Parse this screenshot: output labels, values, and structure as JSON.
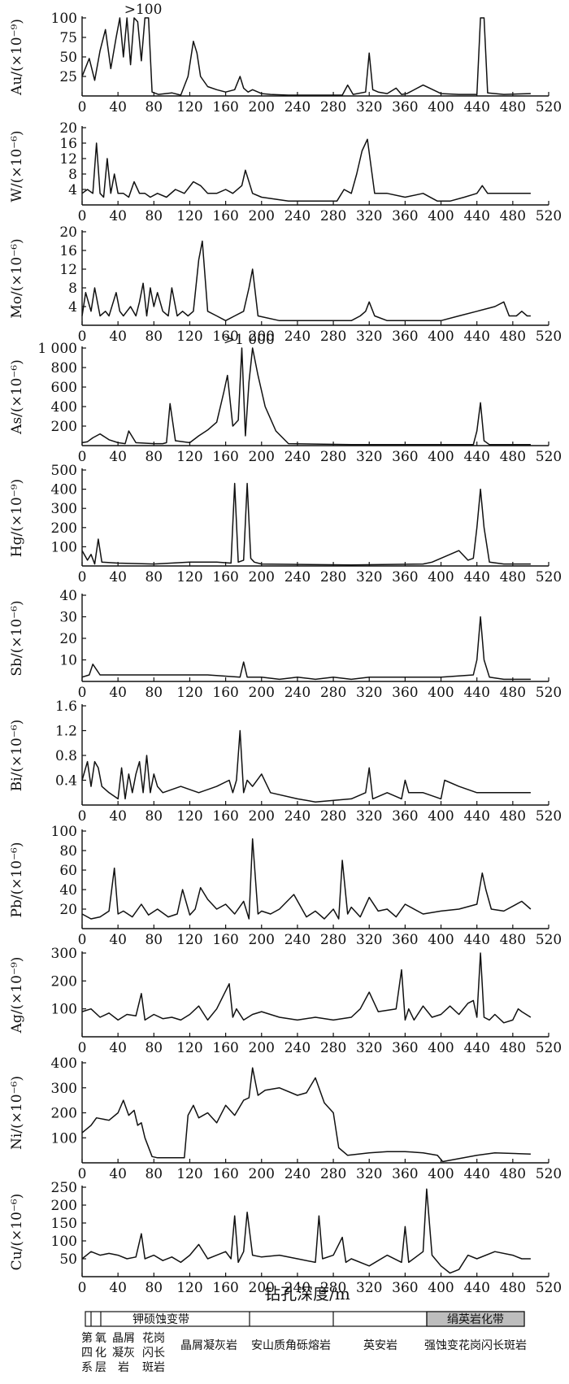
{
  "chart_data": [
    {
      "type": "line",
      "ylabel": "Au/(×10⁻⁹)",
      "yticks": [
        "100",
        "75",
        "50",
        "25"
      ],
      "ylim": [
        0,
        100
      ],
      "xlim": [
        0,
        520
      ],
      "xticks": [
        "0",
        "40",
        "80",
        "120",
        "160",
        "200",
        "240",
        "280",
        "320",
        "360",
        "400",
        "440",
        "480",
        "520"
      ],
      "annotations": [
        {
          "text": ">100",
          "x": 68,
          "y": 100
        }
      ],
      "x": [
        0,
        8,
        14,
        20,
        26,
        32,
        38,
        42,
        46,
        50,
        54,
        58,
        62,
        66,
        70,
        74,
        78,
        85,
        100,
        110,
        118,
        124,
        128,
        132,
        140,
        150,
        160,
        170,
        176,
        180,
        185,
        190,
        200,
        210,
        230,
        260,
        290,
        296,
        302,
        316,
        320,
        324,
        330,
        340,
        350,
        356,
        362,
        380,
        400,
        420,
        440,
        444,
        448,
        452,
        470,
        500
      ],
      "values": [
        25,
        48,
        20,
        58,
        85,
        35,
        75,
        100,
        50,
        100,
        40,
        100,
        95,
        45,
        100,
        100,
        5,
        2,
        4,
        1,
        25,
        70,
        55,
        25,
        12,
        8,
        5,
        8,
        25,
        10,
        5,
        8,
        3,
        2,
        1,
        1,
        1,
        14,
        2,
        5,
        55,
        8,
        5,
        3,
        10,
        2,
        3,
        14,
        3,
        2,
        2,
        100,
        100,
        4,
        2,
        3
      ]
    },
    {
      "type": "line",
      "ylabel": "W/(×10⁻⁶)",
      "yticks": [
        "20",
        "16",
        "12",
        "8",
        "4"
      ],
      "ylim": [
        0,
        20
      ],
      "xlim": [
        0,
        520
      ],
      "xticks": [
        "0",
        "40",
        "80",
        "120",
        "160",
        "200",
        "240",
        "280",
        "320",
        "360",
        "400",
        "440",
        "480",
        "520"
      ],
      "x": [
        0,
        6,
        12,
        16,
        20,
        24,
        28,
        32,
        36,
        40,
        46,
        52,
        58,
        64,
        70,
        76,
        84,
        94,
        104,
        114,
        124,
        132,
        140,
        150,
        160,
        168,
        178,
        182,
        190,
        200,
        230,
        260,
        284,
        292,
        300,
        306,
        312,
        318,
        326,
        340,
        360,
        380,
        396,
        410,
        426,
        440,
        446,
        452,
        470,
        500
      ],
      "values": [
        3,
        4,
        3,
        16,
        3,
        2,
        12,
        3,
        8,
        3,
        3,
        2,
        6,
        3,
        3,
        2,
        3,
        2,
        4,
        3,
        6,
        5,
        3,
        3,
        4,
        3,
        5,
        9,
        3,
        2,
        1,
        1,
        1,
        4,
        3,
        8,
        14,
        17,
        3,
        3,
        2,
        3,
        1,
        1,
        2,
        3,
        5,
        3,
        3,
        3
      ]
    },
    {
      "type": "line",
      "ylabel": "Mo/(×10⁻⁶)",
      "yticks": [
        "20",
        "16",
        "12",
        "8",
        "4"
      ],
      "ylim": [
        0,
        20
      ],
      "xlim": [
        0,
        520
      ],
      "xticks": [
        "0",
        "40",
        "80",
        "120",
        "160",
        "200",
        "240",
        "280",
        "320",
        "360",
        "400",
        "440",
        "480",
        "520"
      ],
      "x": [
        0,
        4,
        10,
        14,
        20,
        26,
        30,
        38,
        42,
        46,
        54,
        60,
        64,
        68,
        72,
        76,
        80,
        84,
        90,
        96,
        100,
        106,
        112,
        118,
        124,
        130,
        134,
        140,
        150,
        160,
        170,
        180,
        186,
        190,
        196,
        220,
        260,
        300,
        310,
        316,
        320,
        326,
        340,
        360,
        380,
        400,
        420,
        440,
        460,
        470,
        476,
        484,
        490,
        496,
        500
      ],
      "values": [
        2,
        7,
        3,
        8,
        2,
        3,
        2,
        7,
        3,
        2,
        4,
        2,
        5,
        9,
        2,
        8,
        4,
        7,
        3,
        2,
        8,
        2,
        3,
        2,
        3,
        14,
        18,
        3,
        2,
        1,
        2,
        3,
        8,
        12,
        2,
        1,
        1,
        1,
        2,
        3,
        5,
        2,
        1,
        1,
        1,
        1,
        2,
        3,
        4,
        5,
        2,
        2,
        3,
        2,
        2
      ]
    },
    {
      "type": "line",
      "ylabel": "As/(×10⁻⁶)",
      "yticks": [
        "1 000",
        "800",
        "600",
        "400",
        "200"
      ],
      "ylim": [
        0,
        1000
      ],
      "xlim": [
        0,
        520
      ],
      "xticks": [
        "0",
        "40",
        "80",
        "120",
        "160",
        "200",
        "240",
        "280",
        "320",
        "360",
        "400",
        "440",
        "480",
        "520"
      ],
      "annotations": [
        {
          "text": ">1 000",
          "x": 186,
          "y": 1000
        }
      ],
      "x": [
        0,
        6,
        12,
        20,
        30,
        40,
        48,
        52,
        60,
        80,
        90,
        94,
        98,
        104,
        120,
        130,
        140,
        150,
        158,
        162,
        168,
        174,
        178,
        182,
        186,
        190,
        196,
        204,
        216,
        230,
        300,
        400,
        436,
        440,
        444,
        448,
        454,
        470,
        500
      ],
      "values": [
        30,
        40,
        80,
        120,
        60,
        30,
        20,
        150,
        30,
        20,
        20,
        30,
        430,
        50,
        30,
        100,
        160,
        240,
        550,
        720,
        200,
        260,
        1000,
        100,
        650,
        1000,
        720,
        400,
        150,
        20,
        10,
        10,
        10,
        150,
        440,
        50,
        10,
        10,
        10
      ]
    },
    {
      "type": "line",
      "ylabel": "Hg/(×10⁻⁹)",
      "yticks": [
        "500",
        "400",
        "300",
        "200",
        "100"
      ],
      "ylim": [
        0,
        500
      ],
      "xlim": [
        0,
        520
      ],
      "xticks": [
        "0",
        "40",
        "80",
        "120",
        "160",
        "200",
        "240",
        "280",
        "320",
        "360",
        "400",
        "440",
        "480",
        "520"
      ],
      "x": [
        0,
        6,
        10,
        14,
        18,
        22,
        40,
        80,
        120,
        150,
        166,
        170,
        174,
        180,
        184,
        188,
        192,
        200,
        300,
        380,
        390,
        400,
        420,
        430,
        436,
        440,
        444,
        448,
        454,
        470,
        500
      ],
      "values": [
        80,
        30,
        60,
        10,
        140,
        20,
        15,
        10,
        20,
        20,
        15,
        430,
        20,
        30,
        430,
        40,
        20,
        10,
        5,
        10,
        20,
        40,
        80,
        30,
        40,
        200,
        400,
        200,
        20,
        10,
        10
      ]
    },
    {
      "type": "line",
      "ylabel": "Sb/(×10⁻⁶)",
      "yticks": [
        "40",
        "30",
        "20",
        "10"
      ],
      "ylim": [
        0,
        40
      ],
      "xlim": [
        0,
        520
      ],
      "xticks": [
        "0",
        "40",
        "80",
        "120",
        "160",
        "200",
        "240",
        "280",
        "320",
        "360",
        "400",
        "440",
        "480",
        "520"
      ],
      "x": [
        0,
        8,
        12,
        20,
        60,
        100,
        140,
        176,
        180,
        184,
        200,
        220,
        240,
        260,
        280,
        300,
        320,
        340,
        360,
        400,
        436,
        440,
        444,
        448,
        454,
        470,
        500
      ],
      "values": [
        2,
        3,
        8,
        3,
        3,
        3,
        3,
        2,
        9,
        2,
        2,
        1,
        2,
        1,
        2,
        1,
        2,
        2,
        2,
        2,
        3,
        10,
        30,
        10,
        2,
        1,
        1
      ]
    },
    {
      "type": "line",
      "ylabel": "Bi/(×10⁻⁶)",
      "yticks": [
        "1.6",
        "1.2",
        "0.8",
        "0.4"
      ],
      "ylim": [
        0,
        1.6
      ],
      "xlim": [
        0,
        520
      ],
      "xticks": [
        "0",
        "40",
        "80",
        "120",
        "160",
        "200",
        "240",
        "280",
        "320",
        "360",
        "400",
        "440",
        "480",
        "520"
      ],
      "x": [
        0,
        6,
        10,
        14,
        18,
        22,
        30,
        40,
        44,
        48,
        52,
        56,
        60,
        64,
        68,
        72,
        76,
        80,
        84,
        90,
        110,
        130,
        150,
        164,
        168,
        172,
        176,
        180,
        184,
        190,
        200,
        210,
        240,
        260,
        300,
        316,
        320,
        324,
        340,
        356,
        360,
        364,
        380,
        400,
        404,
        420,
        440,
        480,
        500
      ],
      "values": [
        0.4,
        0.7,
        0.3,
        0.7,
        0.6,
        0.3,
        0.2,
        0.1,
        0.6,
        0.1,
        0.5,
        0.2,
        0.5,
        0.7,
        0.2,
        0.8,
        0.2,
        0.5,
        0.3,
        0.2,
        0.3,
        0.2,
        0.3,
        0.4,
        0.2,
        0.4,
        1.2,
        0.2,
        0.4,
        0.3,
        0.5,
        0.2,
        0.1,
        0.05,
        0.1,
        0.2,
        0.6,
        0.1,
        0.2,
        0.1,
        0.4,
        0.2,
        0.2,
        0.1,
        0.4,
        0.3,
        0.2,
        0.2,
        0.2
      ]
    },
    {
      "type": "line",
      "ylabel": "Pb/(×10⁻⁶)",
      "yticks": [
        "100",
        "80",
        "60",
        "40",
        "20"
      ],
      "ylim": [
        0,
        100
      ],
      "xlim": [
        0,
        520
      ],
      "xticks": [
        "0",
        "40",
        "80",
        "120",
        "160",
        "200",
        "240",
        "280",
        "320",
        "360",
        "400",
        "440",
        "480",
        "520"
      ],
      "x": [
        0,
        10,
        20,
        30,
        36,
        40,
        46,
        56,
        66,
        74,
        84,
        96,
        106,
        112,
        120,
        126,
        132,
        140,
        150,
        160,
        170,
        180,
        186,
        190,
        196,
        200,
        210,
        220,
        236,
        250,
        260,
        270,
        280,
        286,
        290,
        296,
        300,
        310,
        320,
        330,
        340,
        350,
        360,
        380,
        400,
        420,
        440,
        446,
        450,
        456,
        470,
        490,
        500
      ],
      "values": [
        15,
        10,
        12,
        18,
        62,
        15,
        18,
        12,
        25,
        14,
        20,
        12,
        15,
        40,
        14,
        20,
        42,
        30,
        20,
        25,
        15,
        28,
        10,
        92,
        15,
        18,
        15,
        20,
        35,
        12,
        18,
        10,
        20,
        10,
        70,
        15,
        22,
        12,
        32,
        18,
        20,
        12,
        25,
        15,
        18,
        20,
        25,
        57,
        40,
        20,
        18,
        28,
        20
      ]
    },
    {
      "type": "line",
      "ylabel": "Ag/(×10⁻⁹)",
      "yticks": [
        "300",
        "200",
        "100"
      ],
      "ylim": [
        0,
        300
      ],
      "xlim": [
        0,
        520
      ],
      "xticks": [
        "0",
        "40",
        "80",
        "120",
        "160",
        "200",
        "240",
        "280",
        "320",
        "360",
        "400",
        "440",
        "480",
        "520"
      ],
      "x": [
        0,
        10,
        20,
        30,
        40,
        50,
        60,
        66,
        70,
        80,
        90,
        100,
        110,
        120,
        130,
        140,
        150,
        164,
        168,
        172,
        180,
        190,
        200,
        220,
        240,
        260,
        280,
        300,
        310,
        320,
        330,
        350,
        356,
        360,
        364,
        370,
        380,
        390,
        400,
        410,
        420,
        430,
        436,
        440,
        444,
        448,
        454,
        460,
        470,
        480,
        486,
        490,
        500
      ],
      "values": [
        90,
        100,
        70,
        85,
        60,
        80,
        75,
        155,
        60,
        80,
        65,
        70,
        60,
        80,
        110,
        60,
        100,
        190,
        70,
        100,
        60,
        80,
        90,
        70,
        60,
        70,
        60,
        70,
        100,
        160,
        90,
        100,
        240,
        60,
        100,
        60,
        110,
        70,
        80,
        110,
        80,
        120,
        130,
        70,
        300,
        70,
        60,
        80,
        50,
        60,
        100,
        90,
        70
      ]
    },
    {
      "type": "line",
      "ylabel": "Ni/(×10⁻⁶)",
      "yticks": [
        "400",
        "300",
        "200",
        "100"
      ],
      "ylim": [
        0,
        400
      ],
      "xlim": [
        0,
        520
      ],
      "xticks": [
        "0",
        "40",
        "80",
        "120",
        "160",
        "200",
        "240",
        "280",
        "320",
        "360",
        "400",
        "440",
        "480",
        "520"
      ],
      "x": [
        0,
        10,
        16,
        30,
        40,
        46,
        52,
        58,
        62,
        66,
        70,
        78,
        84,
        114,
        118,
        124,
        130,
        140,
        150,
        160,
        170,
        180,
        186,
        190,
        196,
        204,
        220,
        240,
        250,
        260,
        270,
        280,
        286,
        296,
        320,
        340,
        360,
        380,
        396,
        402,
        440,
        460,
        500
      ],
      "values": [
        120,
        150,
        180,
        170,
        200,
        250,
        190,
        210,
        150,
        160,
        100,
        25,
        20,
        20,
        190,
        230,
        180,
        200,
        160,
        230,
        190,
        250,
        260,
        380,
        270,
        290,
        300,
        270,
        280,
        340,
        240,
        200,
        60,
        30,
        40,
        45,
        45,
        40,
        30,
        5,
        30,
        40,
        35
      ]
    },
    {
      "type": "line",
      "ylabel": "Cu/(×10⁻⁶)",
      "yticks": [
        "250",
        "200",
        "150",
        "100",
        "50"
      ],
      "ylim": [
        0,
        250
      ],
      "xlim": [
        0,
        520
      ],
      "xticks": [
        "0",
        "40",
        "80",
        "120",
        "160",
        "200",
        "240",
        "280",
        "320",
        "360",
        "400",
        "440",
        "480",
        "520"
      ],
      "x": [
        0,
        10,
        20,
        30,
        40,
        50,
        60,
        66,
        70,
        80,
        90,
        100,
        110,
        120,
        130,
        140,
        150,
        160,
        166,
        170,
        174,
        180,
        184,
        190,
        200,
        220,
        240,
        260,
        264,
        268,
        280,
        290,
        294,
        300,
        320,
        340,
        356,
        360,
        364,
        380,
        384,
        390,
        400,
        410,
        420,
        430,
        440,
        460,
        480,
        490,
        500
      ],
      "values": [
        50,
        70,
        60,
        65,
        60,
        50,
        55,
        120,
        50,
        60,
        45,
        55,
        40,
        60,
        90,
        50,
        60,
        70,
        50,
        170,
        40,
        70,
        180,
        60,
        55,
        60,
        50,
        40,
        170,
        50,
        60,
        110,
        40,
        50,
        30,
        60,
        40,
        140,
        40,
        70,
        245,
        60,
        30,
        10,
        20,
        60,
        50,
        70,
        60,
        50,
        50
      ]
    }
  ],
  "x_axis_title": "钻孔深度/m",
  "legend": {
    "zones": [
      {
        "name": "钾硕蚀变带"
      },
      {
        "name": "绢英岩化带"
      }
    ],
    "lithology": [
      {
        "name": "第四系"
      },
      {
        "name": "氧化层"
      },
      {
        "name": "晶屑凝灰岩"
      },
      {
        "name": "花岗闪长斑岩"
      },
      {
        "name": "晶屑凝灰岩"
      },
      {
        "name": "安山质角砾熔岩"
      },
      {
        "name": "英安岩"
      },
      {
        "name": "强蚀变花岗闪长斑岩"
      }
    ]
  }
}
